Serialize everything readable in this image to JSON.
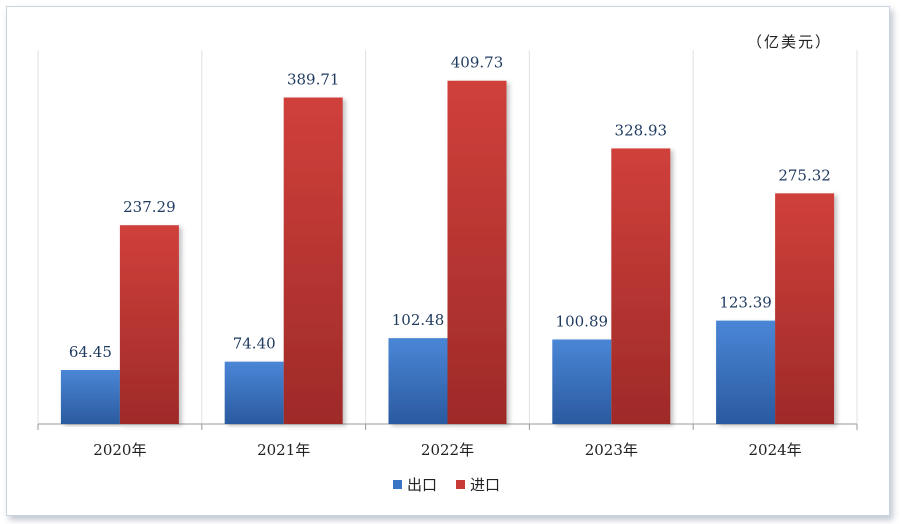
{
  "chart_data": {
    "type": "bar",
    "unit": "（亿美元）",
    "categories": [
      "2020年",
      "2021年",
      "2022年",
      "2023年",
      "2024年"
    ],
    "series": [
      {
        "name": "出口",
        "values": [
          64.45,
          74.4,
          102.48,
          100.89,
          123.39
        ],
        "color": "#3a74c4"
      },
      {
        "name": "进口",
        "values": [
          237.29,
          389.71,
          409.73,
          328.93,
          275.32
        ],
        "color": "#c73a36"
      }
    ],
    "data_labels": [
      [
        "64.45",
        "74.40",
        "102.48",
        "100.89",
        "123.39"
      ],
      [
        "237.29",
        "389.71",
        "409.73",
        "328.93",
        "275.32"
      ]
    ],
    "ylim": [
      0,
      450
    ],
    "grid": "vertical",
    "legend_position": "bottom"
  }
}
